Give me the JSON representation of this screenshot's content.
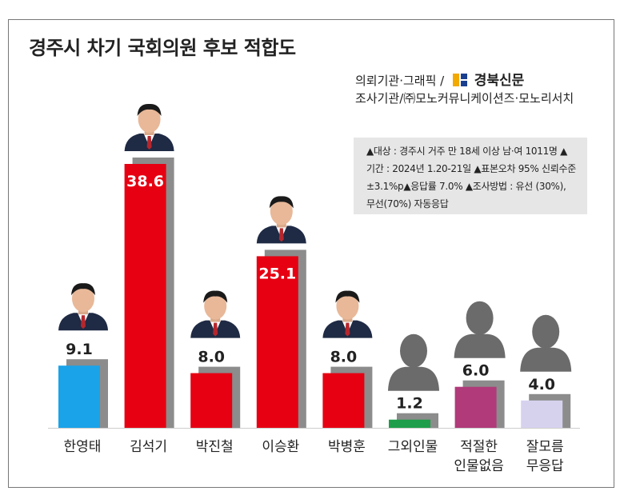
{
  "title": "경주시 차기 국회의원 후보 적합도",
  "credits": {
    "commission_label": "의뢰기관·그래픽 /",
    "brand": "경북신문",
    "research_label": "조사기관/㈜모노커뮤니케이션즈·모노리서치"
  },
  "survey_note": [
    "▲대상 : 경주시 거주 만 18세 이상 남·여 1011명 ▲",
    "기간 : 2024년 1.20-21일 ▲표본오차 95% 신뢰수준",
    "±3.1%p▲응답률 7.0% ▲조사방법 : 유선 (30%),",
    "무선(70%) 자동응답"
  ],
  "chart_data": {
    "type": "bar",
    "title": "경주시 차기 국회의원 후보 적합도",
    "unit": "",
    "categories": [
      [
        "한영태"
      ],
      [
        "김석기"
      ],
      [
        "박진철"
      ],
      [
        "이승환"
      ],
      [
        "박병훈"
      ],
      [
        "그외인물"
      ],
      [
        "적절한",
        "인물없음"
      ],
      [
        "잘모름",
        "무응답"
      ]
    ],
    "values": [
      9.1,
      38.6,
      8.0,
      25.1,
      8.0,
      1.2,
      6.0,
      4.0
    ],
    "value_labels": [
      "9.1",
      "38.6",
      "8.0",
      "25.1",
      "8.0",
      "1.2",
      "6.0",
      "4.0"
    ],
    "colors": [
      "#1aa3e8",
      "#e60012",
      "#e60012",
      "#e60012",
      "#e60012",
      "#1e9e4a",
      "#b03a7a",
      "#d6d2ee"
    ],
    "photo": [
      "person",
      "person",
      "person",
      "person",
      "person",
      "silhouette",
      "silhouette",
      "silhouette"
    ],
    "ylim": [
      0,
      40
    ],
    "grid": false,
    "legend": "none"
  }
}
